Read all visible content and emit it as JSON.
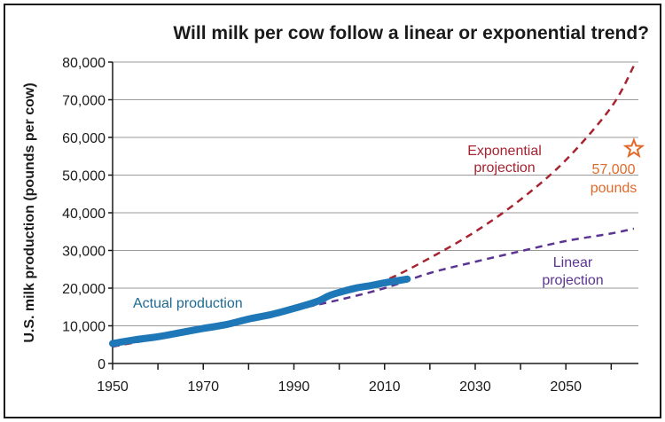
{
  "chart_data": {
    "type": "line",
    "title": "Will milk per cow follow a linear or exponential trend?",
    "xlabel": "",
    "ylabel": "U.S. milk production (pounds per cow)",
    "xlim": [
      1950,
      2066
    ],
    "ylim": [
      0,
      80000
    ],
    "x_ticks": [
      "1950",
      "1970",
      "1990",
      "2010",
      "2030",
      "2050"
    ],
    "y_ticks": [
      "0",
      "10,000",
      "20,000",
      "30,000",
      "40,000",
      "50,000",
      "60,000",
      "70,000",
      "80,000"
    ],
    "series": [
      {
        "name": "Actual production",
        "color": "#1e78b8",
        "style": "solid",
        "x": [
          1950,
          1955,
          1960,
          1965,
          1970,
          1975,
          1980,
          1985,
          1990,
          1995,
          1998,
          2001,
          2004,
          2007,
          2010,
          2013,
          2015
        ],
        "y": [
          5300,
          6300,
          7100,
          8200,
          9300,
          10300,
          11800,
          13000,
          14600,
          16400,
          18100,
          19200,
          20100,
          20700,
          21400,
          22000,
          22400
        ]
      },
      {
        "name": "Exponential projection",
        "color": "#a82330",
        "style": "dashed",
        "x": [
          1950,
          1960,
          1970,
          1980,
          1990,
          2000,
          2010,
          2020,
          2030,
          2040,
          2050,
          2060,
          2065
        ],
        "y": [
          4500,
          6700,
          9100,
          12000,
          15200,
          18500,
          22000,
          28000,
          35000,
          43500,
          54000,
          68000,
          79000
        ]
      },
      {
        "name": "Linear projection",
        "color": "#5b3591",
        "style": "dashed",
        "x": [
          1950,
          1960,
          1970,
          1980,
          1990,
          2000,
          2010,
          2020,
          2030,
          2040,
          2050,
          2060,
          2065
        ],
        "y": [
          4500,
          7200,
          9600,
          12000,
          14300,
          16900,
          20000,
          24000,
          27000,
          29800,
          32500,
          34500,
          35800
        ]
      }
    ],
    "annotations": [
      {
        "text": "Actual production",
        "color": "#1e6a93"
      },
      {
        "text": "Exponential",
        "text2": "projection",
        "color": "#a82330"
      },
      {
        "text": "Linear",
        "text2": "projection",
        "color": "#5b3591"
      },
      {
        "text": "57,000",
        "text2": "pounds",
        "color": "#e06a2a",
        "marker": "star",
        "x": 2065,
        "y": 57000
      }
    ],
    "grid": true
  }
}
